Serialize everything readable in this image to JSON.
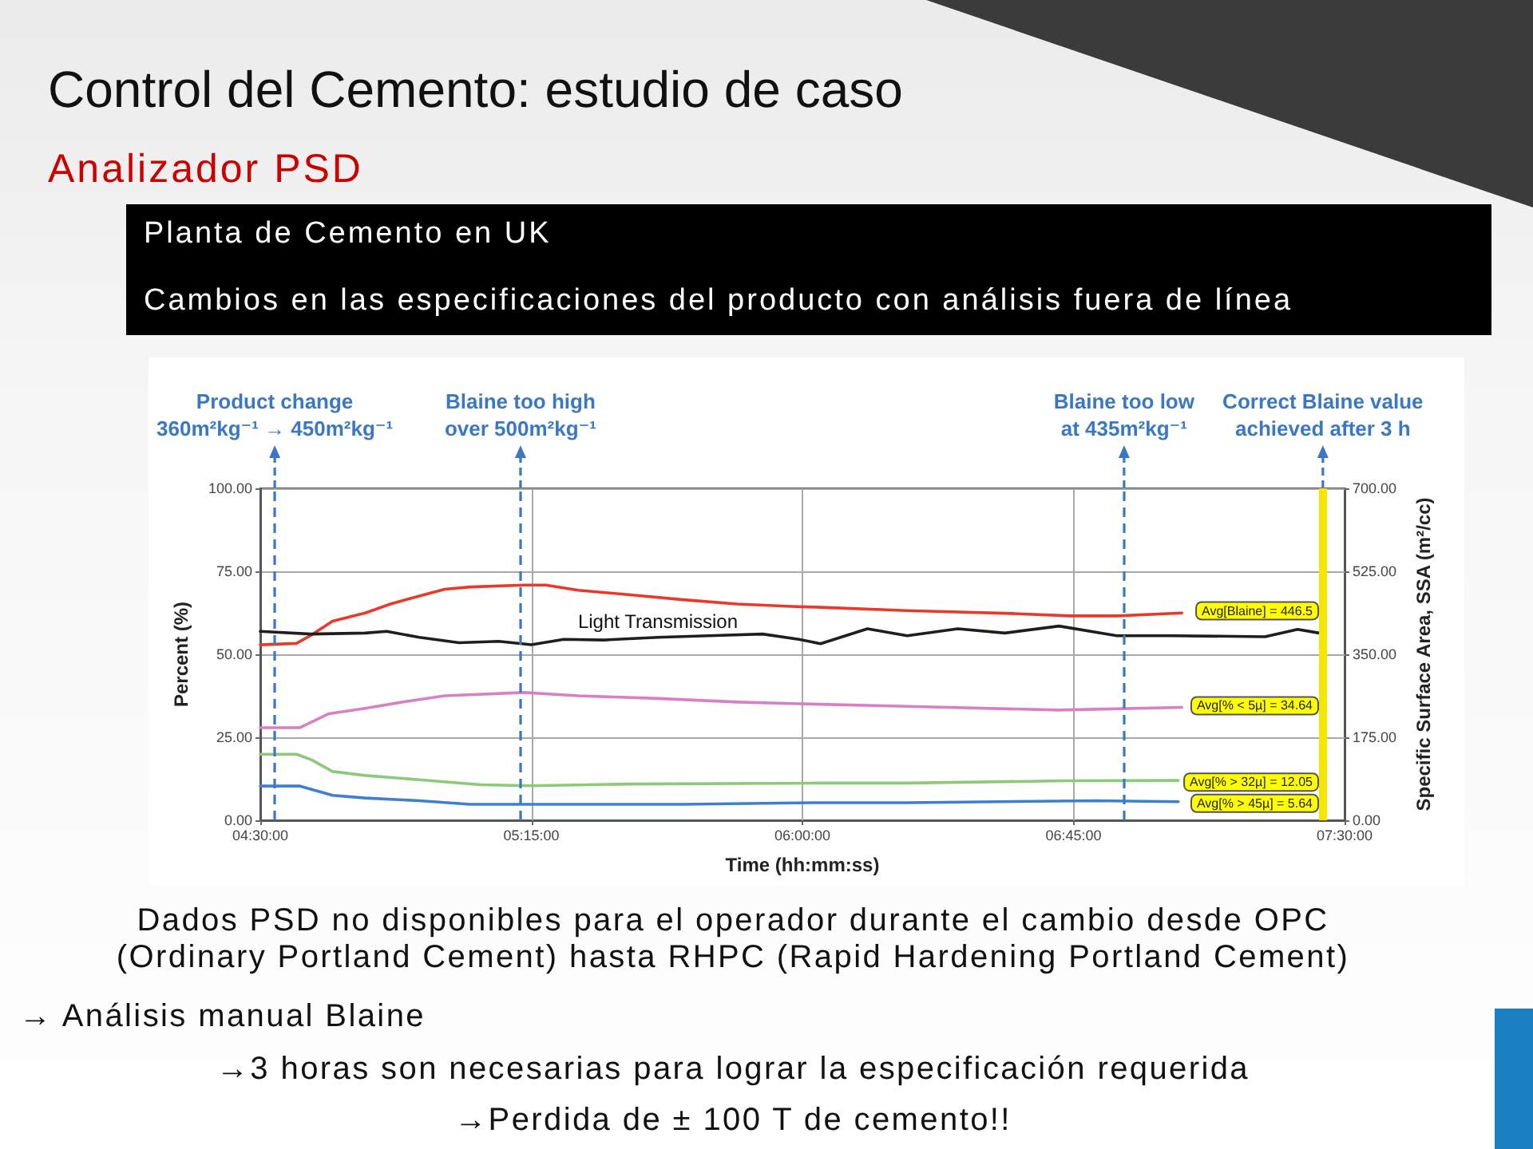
{
  "chart_data": {
    "type": "line",
    "title": "Control del Cemento: estudio de caso",
    "subtitle": "Analizador PSD",
    "xlabel": "Time (hh:mm:ss)",
    "ylabel": "Percent (%)",
    "y2label": "Specific Surface Area, SSA (m²/cc)",
    "xlim": [
      4.5,
      7.5
    ],
    "xticks": [
      {
        "value": 4.5,
        "label": "04:30:00"
      },
      {
        "value": 5.25,
        "label": "05:15:00"
      },
      {
        "value": 6,
        "label": "06:00:00"
      },
      {
        "value": 6.75,
        "label": "06:45:00"
      },
      {
        "value": 7.5,
        "label": "07:30:00"
      }
    ],
    "ylim": [
      0,
      100
    ],
    "yticks": [
      {
        "value": 0,
        "label": "0.00"
      },
      {
        "value": 25,
        "label": "25.00"
      },
      {
        "value": 50,
        "label": "50.00"
      },
      {
        "value": 75,
        "label": "75.00"
      },
      {
        "value": 100,
        "label": "100.00"
      }
    ],
    "y2lim": [
      0,
      700
    ],
    "y2ticks": [
      {
        "value": 0,
        "label": "0.00"
      },
      {
        "value": 175,
        "label": "175.00"
      },
      {
        "value": 350,
        "label": "350.00"
      },
      {
        "value": 525,
        "label": "525.00"
      },
      {
        "value": 700,
        "label": "700.00"
      }
    ],
    "grid": true,
    "series": [
      {
        "color": "#e8392b",
        "axis": "y2",
        "x": [
          4.5,
          4.6,
          4.64,
          4.7,
          4.79,
          4.86,
          4.94,
          5.01,
          5.08,
          5.23,
          5.29,
          5.38,
          5.53,
          5.67,
          5.82,
          5.97,
          6.05,
          6.29,
          6.58,
          6.74,
          6.87,
          7.05
        ],
        "values": [
          370,
          373,
          390,
          420,
          437,
          456,
          473,
          487,
          492,
          496,
          496,
          485,
          475,
          465,
          456,
          451,
          449,
          442,
          436,
          431,
          431,
          437
        ]
      },
      {
        "name": "Light Transmission",
        "color": "#1e1e1e",
        "x": [
          4.5,
          4.64,
          4.79,
          4.85,
          4.94,
          5.05,
          5.16,
          5.25,
          5.34,
          5.45,
          5.6,
          5.74,
          5.89,
          5.99,
          6.05,
          6.18,
          6.29,
          6.43,
          6.56,
          6.71,
          6.87,
          7.02,
          7.28,
          7.37,
          7.43
        ],
        "values": [
          56.9,
          56.1,
          56.4,
          56.9,
          55.1,
          53.5,
          53.9,
          52.9,
          54.5,
          54.3,
          55.1,
          55.6,
          56.1,
          54.5,
          53.2,
          57.7,
          55.6,
          57.7,
          56.4,
          58.5,
          55.6,
          55.6,
          55.3,
          57.5,
          56.4
        ]
      },
      {
        "color": "#d97fc6",
        "x": [
          4.5,
          4.61,
          4.69,
          4.79,
          4.91,
          5.01,
          5.23,
          5.38,
          5.6,
          5.82,
          5.99,
          6.29,
          6.71,
          7.05
        ],
        "values": [
          27.9,
          27.9,
          32.1,
          33.7,
          35.9,
          37.5,
          38.5,
          37.5,
          36.7,
          35.6,
          35.1,
          34.3,
          33.2,
          34.0
        ]
      },
      {
        "color": "#8dc97b",
        "x": [
          4.5,
          4.6,
          4.64,
          4.7,
          4.79,
          4.94,
          5.11,
          5.25,
          5.52,
          6.04,
          6.29,
          6.73,
          7.04
        ],
        "values": [
          19.9,
          19.9,
          18.3,
          14.7,
          13.5,
          12.2,
          10.7,
          10.4,
          10.9,
          11.2,
          11.2,
          11.9,
          12.0
        ]
      },
      {
        "color": "#3f7fcf",
        "x": [
          4.5,
          4.61,
          4.7,
          4.79,
          4.94,
          5.08,
          5.25,
          5.67,
          6.04,
          6.29,
          6.81,
          7.04
        ],
        "values": [
          10.3,
          10.3,
          7.5,
          6.7,
          5.9,
          4.8,
          4.8,
          4.8,
          5.3,
          5.3,
          5.9,
          5.6
        ]
      }
    ],
    "ref_lines": [
      {
        "axis": "x",
        "value": 4.54,
        "label": "Product change\n360m²kg⁻¹ → 450m²kg⁻¹",
        "color": "#3b78c4",
        "line_style": "dashed"
      },
      {
        "axis": "x",
        "value": 5.22,
        "label": "Blaine too high\nover 500m²kg⁻¹",
        "color": "#3b78c4",
        "line_style": "dashed"
      },
      {
        "axis": "x",
        "value": 6.89,
        "label": "Blaine too low\nat 435m²kg⁻¹",
        "color": "#3b78c4",
        "line_style": "dashed"
      },
      {
        "axis": "x",
        "value": 7.44,
        "label": "Correct Blaine value\nachieved after 3 h",
        "color": "#f5e600",
        "line_style": "solid"
      }
    ],
    "annotations": [
      "Planta de Cemento en UK",
      "Cambios en las especificaciones del producto con análisis fuera de línea",
      "Avg[Blaine] = 446.5",
      "Avg[% < 5µ] = 34.64",
      "Avg[% > 32µ] = 12.05",
      "Avg[% > 45µ] = 5.64",
      "Dados PSD no disponibles para el operador durante el cambio desde OPC (Ordinary Portland Cement) hasta RHPC (Rapid Hardening Portland Cement)",
      "→ Análisis manual Blaine",
      "→3 horas son necesarias para lograr la especificación requerida",
      "→Perdida de ± 100 T de cemento!!"
    ]
  }
}
